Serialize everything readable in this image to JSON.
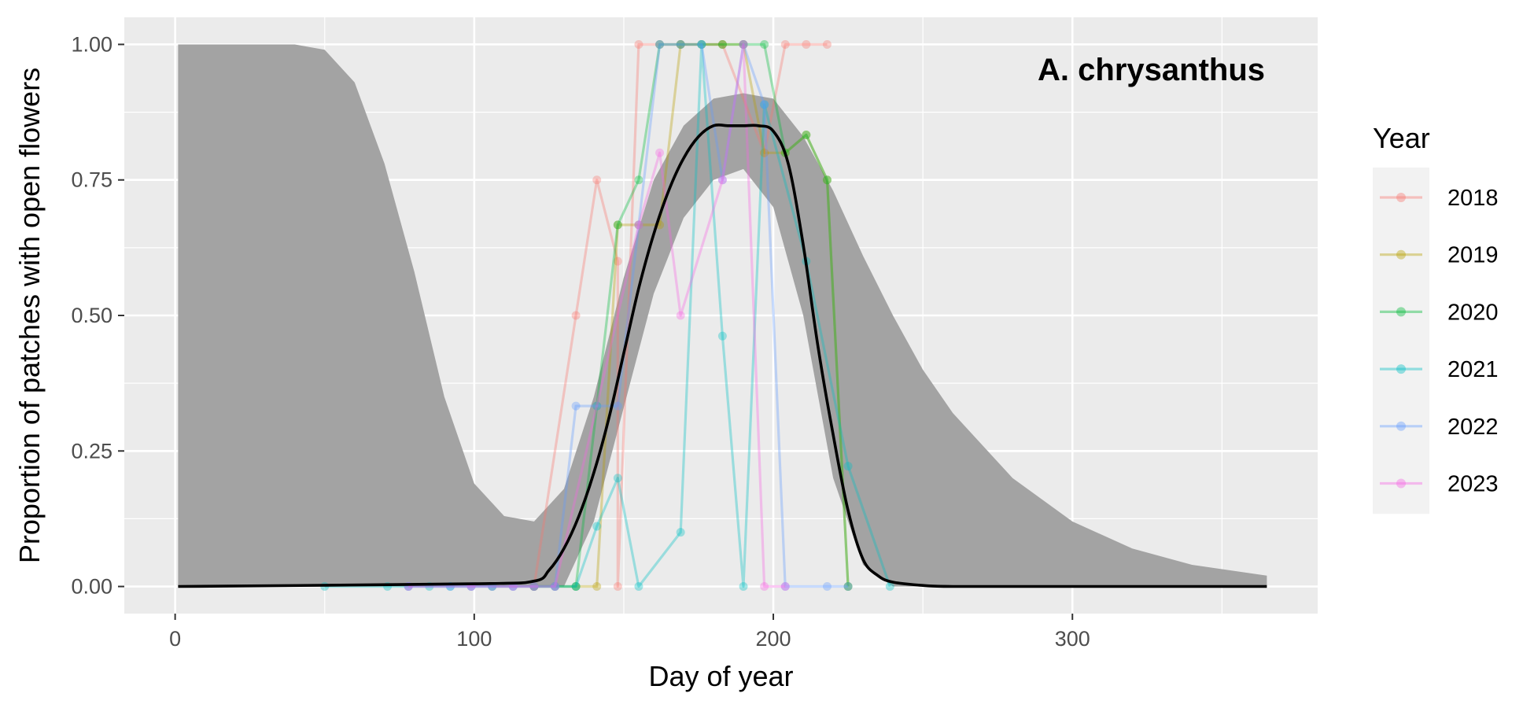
{
  "chart_data": {
    "type": "line",
    "title": "",
    "annotation": "A. chrysanthus",
    "xlabel": "Day of year",
    "ylabel": "Proportion of patches with open flowers",
    "xlim": [
      -17,
      382
    ],
    "ylim": [
      -0.05,
      1.05
    ],
    "x_ticks": [
      0,
      100,
      200,
      300
    ],
    "x_tick_labels": [
      "0",
      "100",
      "200",
      "300"
    ],
    "y_ticks": [
      0,
      0.25,
      0.5,
      0.75,
      1
    ],
    "y_tick_labels": [
      "0.00",
      "0.25",
      "0.50",
      "0.75",
      "1.00"
    ],
    "grid": true,
    "legend": {
      "title": "Year",
      "position": "right"
    },
    "fit": {
      "name": "",
      "color": "#000000",
      "x": [
        1,
        100,
        120,
        125,
        130,
        135,
        140,
        145,
        150,
        155,
        160,
        165,
        170,
        175,
        180,
        185,
        190,
        195,
        200,
        205,
        210,
        215,
        220,
        225,
        230,
        235,
        240,
        250,
        260,
        300,
        365
      ],
      "y": [
        0,
        0.005,
        0.01,
        0.03,
        0.07,
        0.13,
        0.21,
        0.31,
        0.43,
        0.55,
        0.65,
        0.73,
        0.79,
        0.83,
        0.85,
        0.85,
        0.85,
        0.85,
        0.84,
        0.78,
        0.63,
        0.44,
        0.28,
        0.14,
        0.05,
        0.02,
        0.008,
        0.002,
        0,
        0,
        0
      ]
    },
    "ribbon": {
      "color": "#a3a3a3",
      "x": [
        1,
        40,
        50,
        60,
        70,
        80,
        90,
        100,
        110,
        120,
        130,
        140,
        150,
        160,
        170,
        180,
        190,
        200,
        210,
        220,
        230,
        240,
        250,
        260,
        280,
        300,
        320,
        340,
        365
      ],
      "lower": [
        0,
        0,
        0,
        0,
        0,
        0,
        0,
        0,
        0,
        0,
        0,
        0.12,
        0.33,
        0.54,
        0.68,
        0.75,
        0.77,
        0.7,
        0.5,
        0.2,
        0.04,
        0,
        0,
        0,
        0,
        0,
        0,
        0,
        0
      ],
      "upper": [
        1,
        1,
        0.99,
        0.93,
        0.78,
        0.58,
        0.35,
        0.19,
        0.13,
        0.12,
        0.18,
        0.35,
        0.57,
        0.75,
        0.85,
        0.9,
        0.91,
        0.9,
        0.83,
        0.73,
        0.61,
        0.5,
        0.4,
        0.32,
        0.2,
        0.12,
        0.07,
        0.04,
        0.02
      ]
    },
    "series": [
      {
        "name": "2018",
        "color": "#F8766D",
        "x": [
          106,
          120,
          134,
          141,
          148,
          148,
          155,
          162,
          169,
          183,
          197,
          204,
          211,
          218
        ],
        "y": [
          0,
          0,
          0.5,
          0.75,
          0.6,
          0,
          1,
          1,
          1,
          1,
          0.8,
          1,
          1,
          1
        ]
      },
      {
        "name": "2019",
        "color": "#B79F00",
        "x": [
          120,
          134,
          141,
          148,
          155,
          162,
          169,
          176,
          183,
          190,
          197,
          204,
          211,
          218,
          225
        ],
        "y": [
          0,
          0,
          0,
          0.667,
          0.667,
          0.667,
          1,
          1,
          1,
          1,
          0.8,
          0.8,
          0.833,
          0.75,
          0
        ]
      },
      {
        "name": "2020",
        "color": "#00BA38",
        "x": [
          120,
          127,
          134,
          141,
          148,
          155,
          162,
          169,
          176,
          183,
          190,
          197,
          204,
          211,
          218,
          225
        ],
        "y": [
          0,
          0,
          0,
          0.333,
          0.667,
          0.75,
          1,
          1,
          1,
          1,
          1,
          1,
          0.8,
          0.833,
          0.75,
          0
        ]
      },
      {
        "name": "2021",
        "color": "#00BFC4",
        "x": [
          50,
          71,
          78,
          85,
          92,
          99,
          106,
          113,
          120,
          127,
          134,
          141,
          148,
          155,
          169,
          176,
          183,
          190,
          197,
          211,
          225,
          239
        ],
        "y": [
          0,
          0,
          0,
          0,
          0,
          0,
          0,
          0,
          0,
          0,
          0,
          0.111,
          0.2,
          0,
          0.1,
          1,
          0.462,
          0,
          0.889,
          0.6,
          0.222,
          0
        ]
      },
      {
        "name": "2022",
        "color": "#619CFF",
        "x": [
          78,
          92,
          99,
          106,
          113,
          120,
          127,
          134,
          141,
          148,
          155,
          162,
          169,
          176,
          183,
          190,
          197,
          204,
          218,
          225
        ],
        "y": [
          0,
          0,
          0,
          0,
          0,
          0,
          0,
          0.333,
          0.333,
          0.333,
          0.667,
          1,
          1,
          1,
          0.75,
          1,
          0.889,
          0,
          0,
          0
        ]
      },
      {
        "name": "2023",
        "color": "#F564E3",
        "x": [
          78,
          99,
          113,
          120,
          127,
          155,
          162,
          169,
          183,
          190,
          197,
          204
        ],
        "y": [
          0,
          0,
          0,
          0,
          0,
          0.667,
          0.8,
          0.5,
          0.75,
          1,
          0,
          0
        ]
      }
    ]
  }
}
